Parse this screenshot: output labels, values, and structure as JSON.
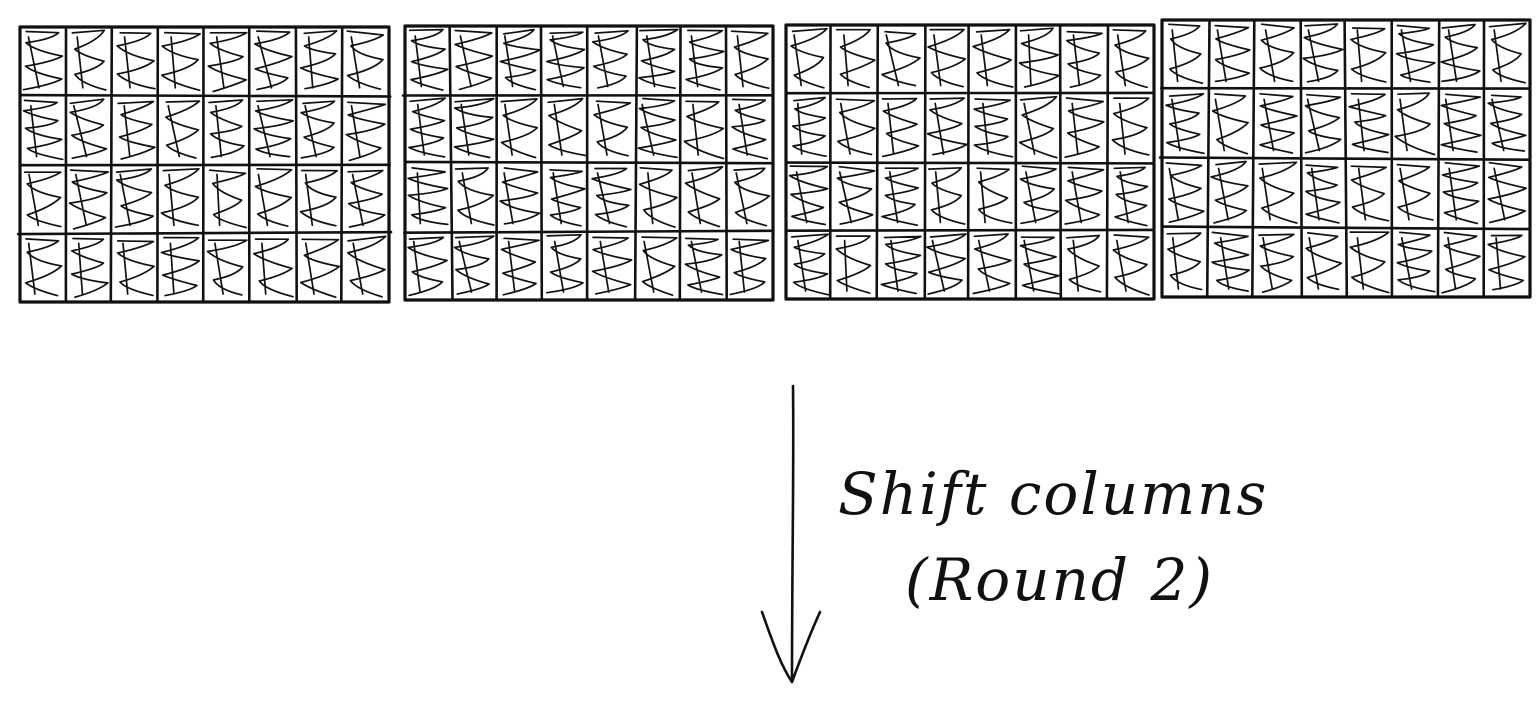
{
  "diagram": {
    "grid_count": 4,
    "rows_per_grid": 4,
    "columns_per_grid": 8,
    "cell_fill": "scribbled",
    "ink_color": "#111111",
    "background_color": "#ffffff",
    "arrow": {
      "direction": "down",
      "label_line1": "Shift columns",
      "label_line2": "(Round 2)"
    }
  }
}
